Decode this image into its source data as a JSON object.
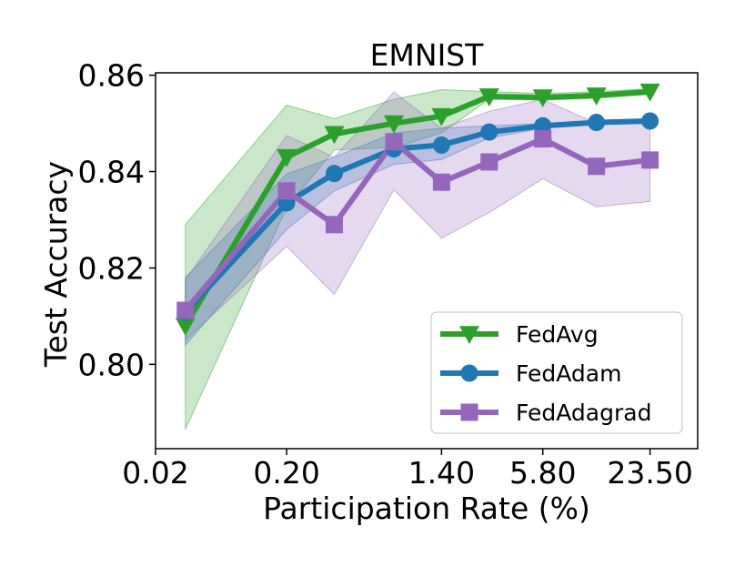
{
  "chart_data": {
    "type": "line",
    "title": "EMNIST",
    "xlabel": "Participation Rate (%)",
    "ylabel": "Test Accuracy",
    "x_tick_labels": [
      "0.02",
      "0.20",
      "1.40",
      "5.80",
      "23.50"
    ],
    "y_ticks": [
      0.8,
      0.82,
      0.84,
      0.86
    ],
    "y_tick_labels": [
      "0.80",
      "0.82",
      "0.84",
      "0.86"
    ],
    "ylim": [
      0.7825,
      0.8605
    ],
    "grid": false,
    "legend_position": "lower-right",
    "x_positions": [
      0.5,
      2.2,
      3.0,
      4.0,
      4.8,
      5.6,
      6.5,
      7.4,
      8.3
    ],
    "series": [
      {
        "name": "FedAvg",
        "color": "#2ca02c",
        "marker": "triangle-down",
        "values": [
          0.808,
          0.843,
          0.8478,
          0.85,
          0.8515,
          0.8556,
          0.8554,
          0.8558,
          0.8566
        ],
        "lower": [
          0.7865,
          0.8325,
          0.8445,
          0.845,
          0.848,
          0.855,
          0.8548,
          0.8552,
          0.856
        ],
        "upper": [
          0.829,
          0.8538,
          0.851,
          0.855,
          0.857,
          0.8566,
          0.8562,
          0.8566,
          0.8572
        ]
      },
      {
        "name": "FedAdam",
        "color": "#1f77b4",
        "marker": "circle",
        "values": [
          0.8108,
          0.8335,
          0.8396,
          0.8447,
          0.8455,
          0.8482,
          0.8495,
          0.8502,
          0.8505
        ],
        "lower": [
          0.804,
          0.828,
          0.836,
          0.8415,
          0.8425,
          0.847,
          0.849,
          0.8498,
          0.85
        ],
        "upper": [
          0.818,
          0.8395,
          0.843,
          0.848,
          0.849,
          0.8495,
          0.85,
          0.8506,
          0.851
        ]
      },
      {
        "name": "FedAdagrad",
        "color": "#9467bd",
        "marker": "square",
        "values": [
          0.8112,
          0.836,
          0.829,
          0.8462,
          0.8378,
          0.842,
          0.8468,
          0.8411,
          0.8424
        ],
        "lower": [
          0.805,
          0.8245,
          0.8145,
          0.8362,
          0.8262,
          0.8315,
          0.8385,
          0.8327,
          0.8338
        ],
        "upper": [
          0.8175,
          0.8475,
          0.843,
          0.8565,
          0.849,
          0.8525,
          0.855,
          0.85,
          0.8505
        ]
      }
    ]
  }
}
